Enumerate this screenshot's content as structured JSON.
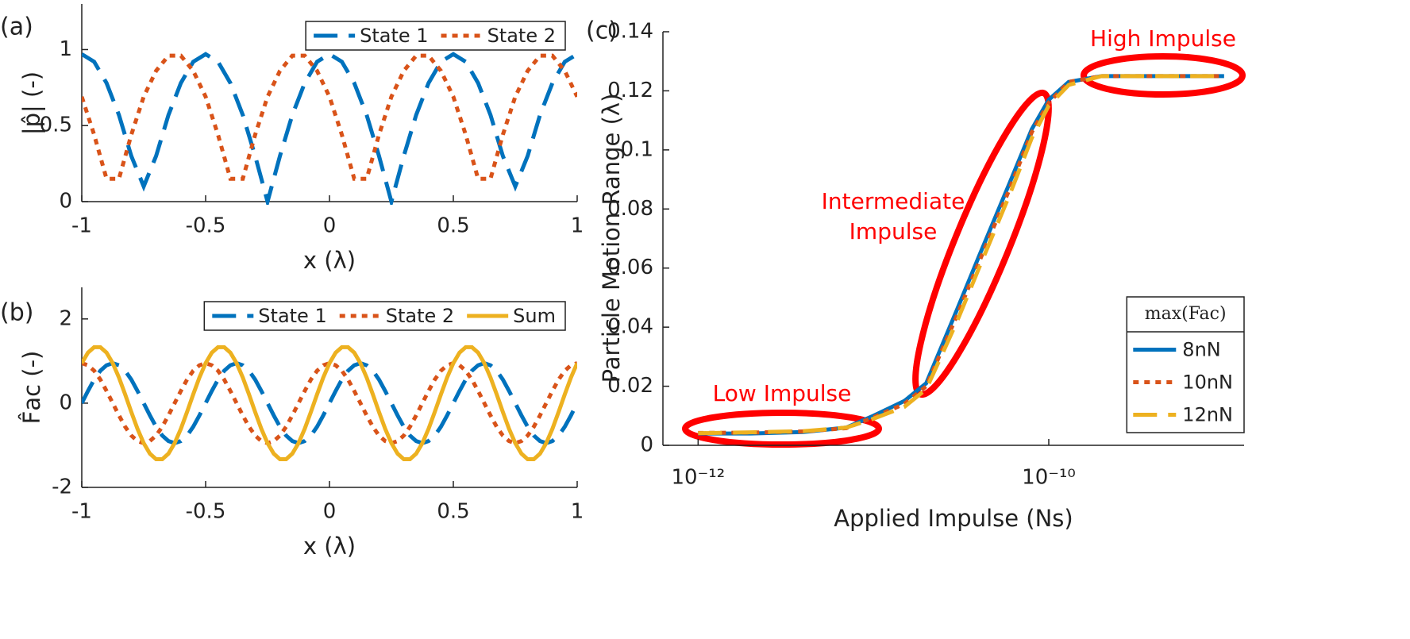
{
  "chart_data": [
    {
      "type": "line",
      "panel_label": "(a)",
      "ylabel": "|p̂| (-)",
      "xlabel": "x (λ)",
      "xlim": [
        -1,
        1
      ],
      "xticks": [
        -1,
        -0.5,
        0,
        0.5,
        1
      ],
      "ylim": [
        0,
        1.3
      ],
      "yticks": [
        0,
        0.5,
        1
      ],
      "legend": "upper right",
      "legend_layout": "horizontal",
      "grid": false,
      "x": [
        -1,
        -0.95,
        -0.9,
        -0.85,
        -0.8,
        -0.75,
        -0.7,
        -0.65,
        -0.6,
        -0.55,
        -0.5,
        -0.45,
        -0.4,
        -0.35,
        -0.3,
        -0.25,
        -0.2,
        -0.15,
        -0.1,
        -0.05,
        0,
        0.05,
        0.1,
        0.15,
        0.2,
        0.25,
        0.3,
        0.35,
        0.4,
        0.45,
        0.5,
        0.55,
        0.6,
        0.65,
        0.7,
        0.75,
        0.8,
        0.85,
        0.9,
        0.95,
        1
      ],
      "series": [
        {
          "name": "State 1",
          "color": "#0072bd",
          "linestyle": "dashed",
          "values": [
            0.97,
            0.92,
            0.78,
            0.57,
            0.3,
            0.1,
            0.3,
            0.57,
            0.78,
            0.92,
            0.97,
            0.92,
            0.78,
            0.57,
            0.3,
            0,
            0.3,
            0.57,
            0.78,
            0.92,
            0.97,
            0.92,
            0.78,
            0.57,
            0.3,
            0,
            0.3,
            0.57,
            0.78,
            0.92,
            0.97,
            0.92,
            0.78,
            0.57,
            0.3,
            0.1,
            0.3,
            0.57,
            0.78,
            0.92,
            0.97
          ]
        },
        {
          "name": "State 2",
          "color": "#d95319",
          "linestyle": "dotted",
          "values": [
            0.69,
            0.44,
            0.15,
            0.15,
            0.44,
            0.69,
            0.86,
            0.96,
            0.96,
            0.86,
            0.69,
            0.44,
            0.15,
            0.15,
            0.44,
            0.69,
            0.86,
            0.96,
            0.96,
            0.86,
            0.69,
            0.44,
            0.15,
            0.15,
            0.44,
            0.69,
            0.86,
            0.96,
            0.96,
            0.86,
            0.69,
            0.44,
            0.15,
            0.15,
            0.44,
            0.69,
            0.86,
            0.96,
            0.96,
            0.86,
            0.69
          ]
        }
      ]
    },
    {
      "type": "line",
      "panel_label": "(b)",
      "ylabel": "F̂ac (-)",
      "xlabel": "x (λ)",
      "xlim": [
        -1,
        1
      ],
      "xticks": [
        -1,
        -0.5,
        0,
        0.5,
        1
      ],
      "ylim": [
        -2,
        2.75
      ],
      "yticks": [
        -2,
        0,
        2
      ],
      "legend": "upper right",
      "legend_layout": "horizontal",
      "grid": false,
      "x": [
        -1,
        -0.975,
        -0.95,
        -0.925,
        -0.9,
        -0.875,
        -0.85,
        -0.825,
        -0.8,
        -0.775,
        -0.75,
        -0.725,
        -0.7,
        -0.675,
        -0.65,
        -0.625,
        -0.6,
        -0.575,
        -0.55,
        -0.525,
        -0.5,
        -0.475,
        -0.45,
        -0.425,
        -0.4,
        -0.375,
        -0.35,
        -0.325,
        -0.3,
        -0.275,
        -0.25,
        -0.225,
        -0.2,
        -0.175,
        -0.15,
        -0.125,
        -0.1,
        -0.075,
        -0.05,
        -0.025,
        0,
        0.025,
        0.05,
        0.075,
        0.1,
        0.125,
        0.15,
        0.175,
        0.2,
        0.225,
        0.25,
        0.275,
        0.3,
        0.325,
        0.35,
        0.375,
        0.4,
        0.425,
        0.45,
        0.475,
        0.5,
        0.525,
        0.55,
        0.575,
        0.6,
        0.625,
        0.65,
        0.675,
        0.7,
        0.725,
        0.75,
        0.775,
        0.8,
        0.825,
        0.85,
        0.875,
        0.9,
        0.925,
        0.95,
        0.975,
        1
      ],
      "series": [
        {
          "name": "State 1",
          "color": "#0072bd",
          "linestyle": "dashed",
          "values": [
            0,
            0.29,
            0.56,
            0.77,
            0.9,
            0.95,
            0.9,
            0.77,
            0.56,
            0.29,
            0,
            -0.29,
            -0.56,
            -0.77,
            -0.9,
            -0.95,
            -0.9,
            -0.77,
            -0.56,
            -0.29,
            0,
            0.29,
            0.56,
            0.77,
            0.9,
            0.95,
            0.9,
            0.77,
            0.56,
            0.29,
            0,
            -0.29,
            -0.56,
            -0.77,
            -0.9,
            -0.95,
            -0.9,
            -0.77,
            -0.56,
            -0.29,
            0,
            0.29,
            0.56,
            0.77,
            0.9,
            0.95,
            0.9,
            0.77,
            0.56,
            0.29,
            0,
            -0.29,
            -0.56,
            -0.77,
            -0.9,
            -0.95,
            -0.9,
            -0.77,
            -0.56,
            -0.29,
            0,
            0.29,
            0.56,
            0.77,
            0.9,
            0.95,
            0.9,
            0.77,
            0.56,
            0.29,
            0,
            -0.29,
            -0.56,
            -0.77,
            -0.9,
            -0.95,
            -0.9,
            -0.77,
            -0.56,
            -0.29,
            0
          ]
        },
        {
          "name": "State 2",
          "color": "#d95319",
          "linestyle": "dotted",
          "values": [
            0.95,
            0.9,
            0.77,
            0.56,
            0.29,
            0,
            -0.29,
            -0.56,
            -0.77,
            -0.9,
            -0.95,
            -0.9,
            -0.77,
            -0.56,
            -0.29,
            0,
            0.29,
            0.56,
            0.77,
            0.9,
            0.95,
            0.9,
            0.77,
            0.56,
            0.29,
            0,
            -0.29,
            -0.56,
            -0.77,
            -0.9,
            -0.95,
            -0.9,
            -0.77,
            -0.56,
            -0.29,
            0,
            0.29,
            0.56,
            0.77,
            0.9,
            0.95,
            0.9,
            0.77,
            0.56,
            0.29,
            0,
            -0.29,
            -0.56,
            -0.77,
            -0.9,
            -0.95,
            -0.9,
            -0.77,
            -0.56,
            -0.29,
            0,
            0.29,
            0.56,
            0.77,
            0.9,
            0.95,
            0.9,
            0.77,
            0.56,
            0.29,
            0,
            -0.29,
            -0.56,
            -0.77,
            -0.9,
            -0.95,
            -0.9,
            -0.77,
            -0.56,
            -0.29,
            0,
            0.29,
            0.56,
            0.77,
            0.9,
            0.95
          ]
        },
        {
          "name": "Sum",
          "color": "#edb120",
          "linestyle": "solid",
          "values": [
            0.95,
            1.2,
            1.33,
            1.33,
            1.2,
            0.95,
            0.61,
            0.21,
            -0.21,
            -0.61,
            -0.95,
            -1.2,
            -1.33,
            -1.33,
            -1.2,
            -0.95,
            -0.61,
            -0.21,
            0.21,
            0.61,
            0.95,
            1.2,
            1.33,
            1.33,
            1.2,
            0.95,
            0.61,
            0.21,
            -0.21,
            -0.61,
            -0.95,
            -1.2,
            -1.33,
            -1.33,
            -1.2,
            -0.95,
            -0.61,
            -0.21,
            0.21,
            0.61,
            0.95,
            1.2,
            1.33,
            1.33,
            1.2,
            0.95,
            0.61,
            0.21,
            -0.21,
            -0.61,
            -0.95,
            -1.2,
            -1.33,
            -1.33,
            -1.2,
            -0.95,
            -0.61,
            -0.21,
            0.21,
            0.61,
            0.95,
            1.2,
            1.33,
            1.33,
            1.2,
            0.95,
            0.61,
            0.21,
            -0.21,
            -0.61,
            -0.95,
            -1.2,
            -1.33,
            -1.33,
            -1.2,
            -0.95,
            -0.61,
            -0.21,
            0.21,
            0.61,
            0.95
          ]
        }
      ]
    },
    {
      "type": "line",
      "panel_label": "(c)",
      "ylabel": "Particle Motion Range (λ)",
      "xlabel": "Applied Impulse (Ns)",
      "xscale": "log",
      "xlim": [
        6.3e-13,
        1.3e-09
      ],
      "xticks": [
        {
          "value": 1e-12,
          "label": "10⁻¹²"
        },
        {
          "value": 1e-10,
          "label": "10⁻¹⁰"
        }
      ],
      "ylim": [
        0,
        0.14
      ],
      "yticks": [
        0,
        0.02,
        0.04,
        0.06,
        0.08,
        0.1,
        0.12,
        0.14
      ],
      "legend": "lower right",
      "legend_layout": "vertical",
      "legend_title": "max(Fac)",
      "grid": false,
      "annotations": [
        "Low Impulse",
        "Intermediate",
        "Impulse",
        "High Impulse"
      ],
      "x": [
        1e-12,
        2e-12,
        4e-12,
        7e-12,
        1e-11,
        1.5e-11,
        2e-11,
        3e-11,
        4e-11,
        6e-11,
        8e-11,
        1e-10,
        1.3e-10,
        2e-10,
        4e-10,
        1e-09
      ],
      "series": [
        {
          "name": "8nN",
          "color": "#0072bd",
          "linestyle": "solid",
          "values": [
            0.004,
            0.004,
            0.0045,
            0.006,
            0.01,
            0.015,
            0.021,
            0.046,
            0.064,
            0.089,
            0.107,
            0.117,
            0.123,
            0.125,
            0.125,
            0.125
          ]
        },
        {
          "name": "10nN",
          "color": "#d95319",
          "linestyle": "dotted",
          "values": [
            0.0042,
            0.0043,
            0.0047,
            0.0058,
            0.0095,
            0.014,
            0.02,
            0.044,
            0.062,
            0.087,
            0.106,
            0.116,
            0.123,
            0.125,
            0.125,
            0.125
          ]
        },
        {
          "name": "12nN",
          "color": "#edb120",
          "linestyle": "dashed",
          "values": [
            0.0041,
            0.0044,
            0.0048,
            0.006,
            0.009,
            0.013,
            0.019,
            0.042,
            0.06,
            0.085,
            0.104,
            0.115,
            0.122,
            0.125,
            0.125,
            0.125
          ]
        }
      ]
    }
  ]
}
